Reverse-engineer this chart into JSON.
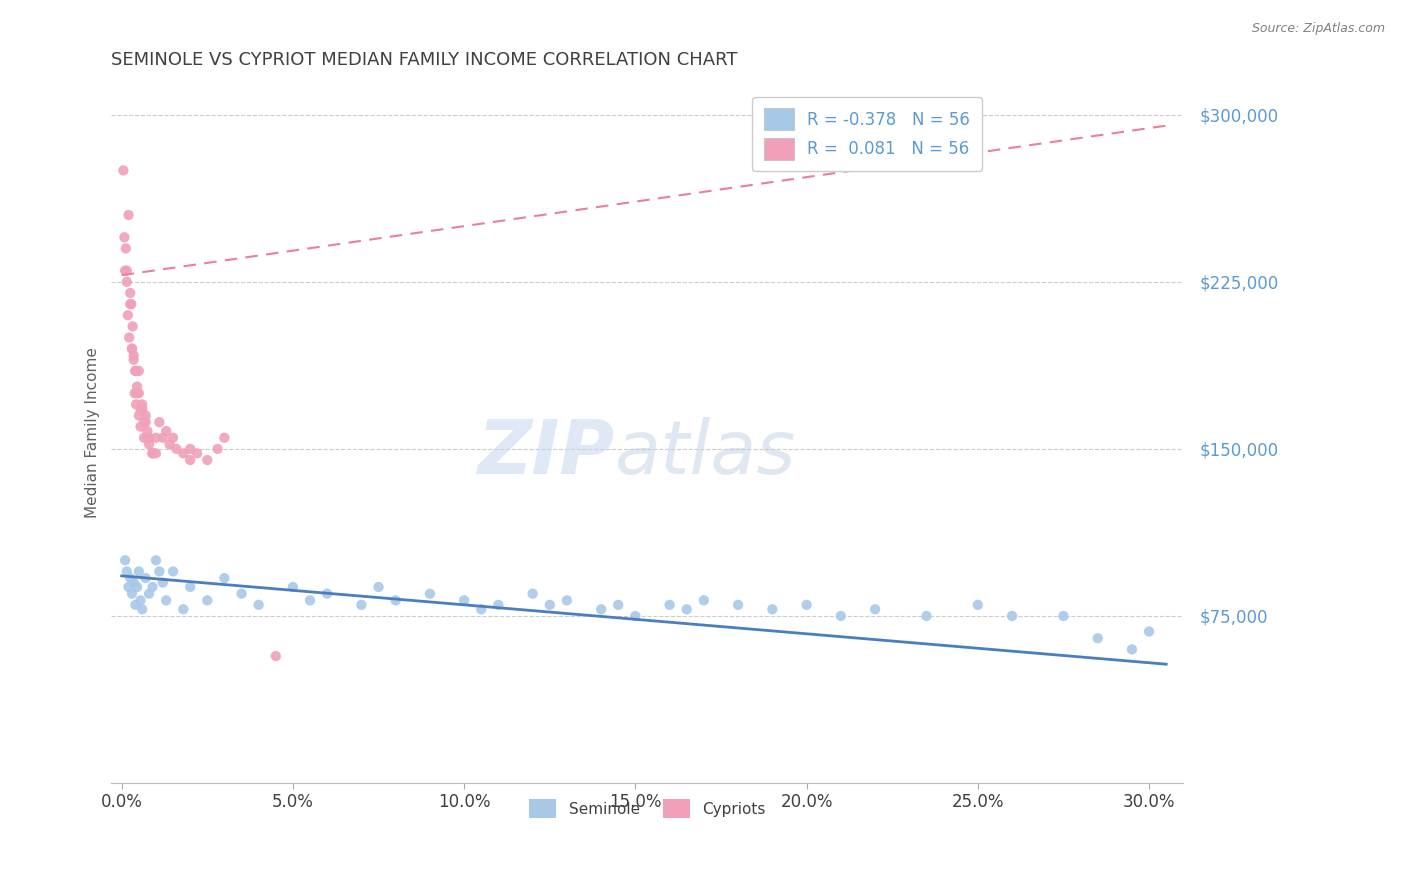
{
  "title": "SEMINOLE VS CYPRIOT MEDIAN FAMILY INCOME CORRELATION CHART",
  "source": "Source: ZipAtlas.com",
  "xlabel_ticks": [
    "0.0%",
    "5.0%",
    "10.0%",
    "15.0%",
    "20.0%",
    "25.0%",
    "30.0%"
  ],
  "xlabel_vals": [
    0.0,
    5.0,
    10.0,
    15.0,
    20.0,
    25.0,
    30.0
  ],
  "ylabel_ticks": [
    "$75,000",
    "$150,000",
    "$225,000",
    "$300,000"
  ],
  "ylabel_vals": [
    75000,
    150000,
    225000,
    300000
  ],
  "ylim": [
    0,
    315000
  ],
  "xlim": [
    -0.3,
    31.0
  ],
  "seminole_color": "#A8C8E8",
  "cypriot_color": "#F0A0B8",
  "trend_seminole_color": "#4A7EC0",
  "trend_cypriot_color": "#E88098",
  "legend_r_seminole": "-0.378",
  "legend_r_cypriot": "0.081",
  "legend_n": "56",
  "seminole_label": "Seminole",
  "cypriot_label": "Cypriots",
  "ylabel": "Median Family Income",
  "watermark_zip": "ZIP",
  "watermark_atlas": "atlas",
  "background_color": "#FFFFFF",
  "grid_color": "#CCCCCC",
  "axis_label_color": "#5B9BD5",
  "title_color": "#404040",
  "seminole_x": [
    0.1,
    0.15,
    0.2,
    0.25,
    0.3,
    0.35,
    0.4,
    0.45,
    0.5,
    0.55,
    0.6,
    0.7,
    0.8,
    0.9,
    1.0,
    1.1,
    1.2,
    1.3,
    1.5,
    1.8,
    2.0,
    2.5,
    3.0,
    3.5,
    4.0,
    5.0,
    5.5,
    6.0,
    7.0,
    7.5,
    8.0,
    9.0,
    10.0,
    10.5,
    11.0,
    12.0,
    12.5,
    13.0,
    14.0,
    14.5,
    15.0,
    16.0,
    16.5,
    17.0,
    18.0,
    19.0,
    20.0,
    21.0,
    22.0,
    23.5,
    25.0,
    26.0,
    27.5,
    28.5,
    29.5,
    30.0
  ],
  "seminole_y": [
    100000,
    95000,
    88000,
    92000,
    85000,
    90000,
    80000,
    88000,
    95000,
    82000,
    78000,
    92000,
    85000,
    88000,
    100000,
    95000,
    90000,
    82000,
    95000,
    78000,
    88000,
    82000,
    92000,
    85000,
    80000,
    88000,
    82000,
    85000,
    80000,
    88000,
    82000,
    85000,
    82000,
    78000,
    80000,
    85000,
    80000,
    82000,
    78000,
    80000,
    75000,
    80000,
    78000,
    82000,
    80000,
    78000,
    80000,
    75000,
    78000,
    75000,
    80000,
    75000,
    75000,
    65000,
    60000,
    68000
  ],
  "cypriot_x": [
    0.05,
    0.08,
    0.1,
    0.12,
    0.15,
    0.18,
    0.2,
    0.22,
    0.25,
    0.28,
    0.3,
    0.32,
    0.35,
    0.38,
    0.4,
    0.42,
    0.45,
    0.5,
    0.5,
    0.55,
    0.6,
    0.65,
    0.7,
    0.75,
    0.8,
    0.9,
    1.0,
    1.1,
    1.3,
    1.5,
    1.8,
    2.0,
    2.5,
    3.0,
    0.15,
    0.25,
    0.35,
    0.45,
    0.55,
    0.65,
    0.75,
    0.9,
    1.2,
    1.6,
    2.2,
    0.3,
    0.4,
    0.5,
    0.6,
    0.7,
    0.8,
    1.0,
    1.4,
    2.8,
    4.5,
    2.0
  ],
  "cypriot_y": [
    275000,
    245000,
    230000,
    240000,
    225000,
    210000,
    255000,
    200000,
    220000,
    215000,
    195000,
    205000,
    190000,
    175000,
    185000,
    170000,
    175000,
    165000,
    185000,
    160000,
    170000,
    155000,
    165000,
    158000,
    152000,
    148000,
    155000,
    162000,
    158000,
    155000,
    148000,
    150000,
    145000,
    155000,
    230000,
    215000,
    192000,
    178000,
    168000,
    162000,
    155000,
    148000,
    155000,
    150000,
    148000,
    195000,
    185000,
    175000,
    168000,
    162000,
    155000,
    148000,
    152000,
    150000,
    57000,
    145000
  ]
}
